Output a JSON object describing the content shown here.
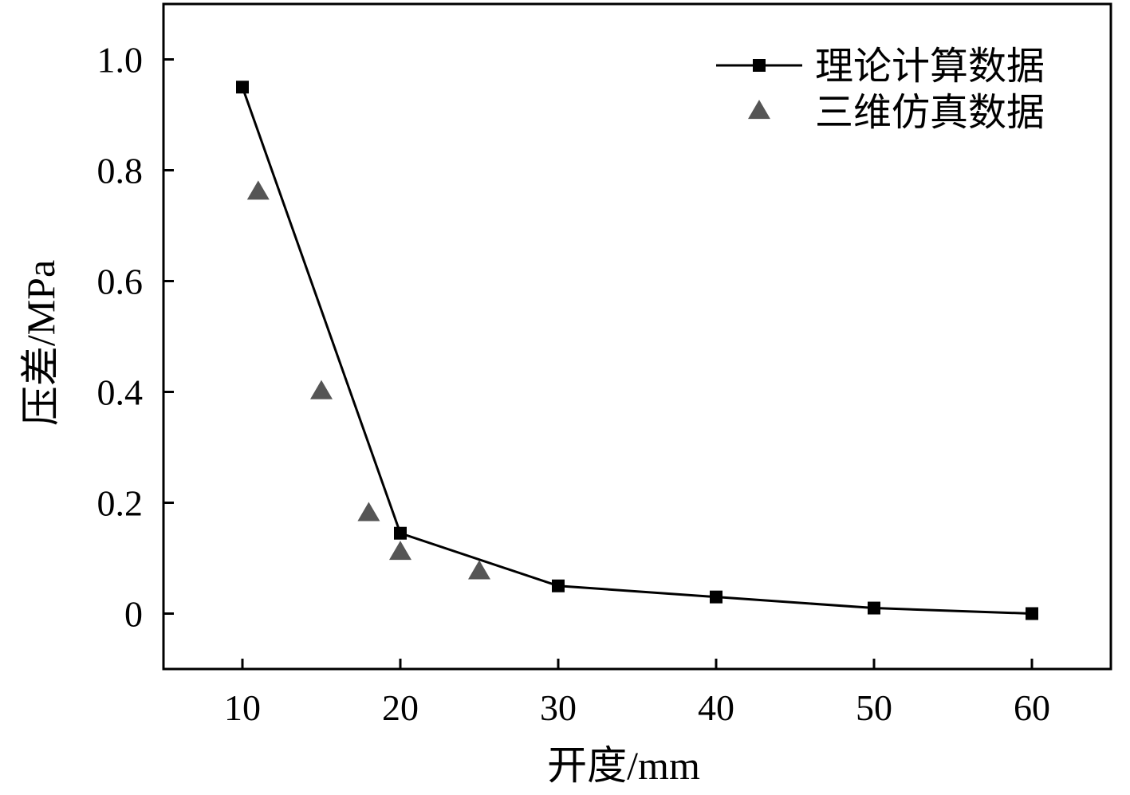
{
  "chart_data": {
    "type": "line",
    "xlabel": "开度/mm",
    "ylabel": "压差/MPa",
    "xlim": [
      5,
      65
    ],
    "ylim": [
      -0.1,
      1.1
    ],
    "x_ticks": [
      10,
      20,
      30,
      40,
      50,
      60
    ],
    "x_tick_labels": [
      "10",
      "20",
      "30",
      "40",
      "50",
      "60"
    ],
    "y_ticks": [
      0,
      0.2,
      0.4,
      0.6,
      0.8,
      1.0
    ],
    "y_tick_labels": [
      "0",
      "0.2",
      "0.4",
      "0.6",
      "0.8",
      "1.0"
    ],
    "grid": false,
    "legend_position": "top-right",
    "series": [
      {
        "name": "理论计算数据",
        "marker": "square",
        "line": true,
        "color": "#000000",
        "points": [
          [
            10,
            0.95
          ],
          [
            20,
            0.145
          ],
          [
            30,
            0.05
          ],
          [
            40,
            0.03
          ],
          [
            50,
            0.01
          ],
          [
            60,
            0.0
          ]
        ]
      },
      {
        "name": "三维仿真数据",
        "marker": "triangle",
        "line": false,
        "color": "#555555",
        "points": [
          [
            11,
            0.76
          ],
          [
            15,
            0.4
          ],
          [
            18,
            0.18
          ],
          [
            20,
            0.11
          ],
          [
            25,
            0.075
          ]
        ]
      }
    ]
  }
}
